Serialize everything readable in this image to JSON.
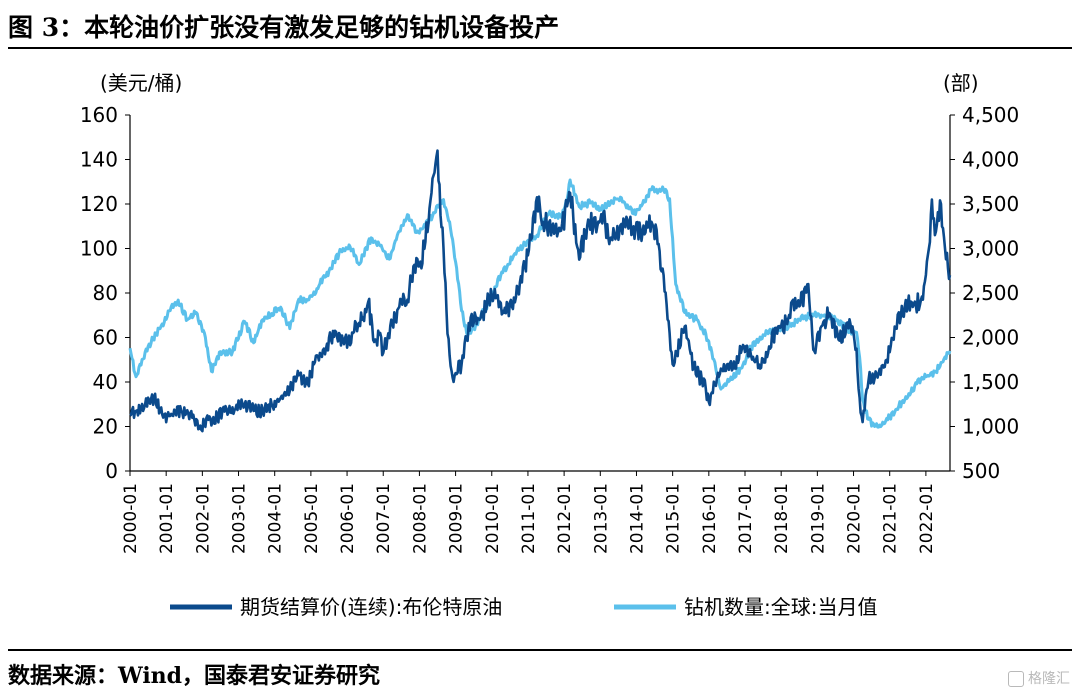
{
  "figure": {
    "title": "图 3：本轮油价扩张没有激发足够的钻机设备投产",
    "source": "数据来源：Wind，国泰君安证券研究",
    "watermark": "格隆汇"
  },
  "chart_data": {
    "type": "line",
    "title": "",
    "y_left": {
      "unit_label": "(美元/桶)",
      "min": 0,
      "max": 160,
      "ticks": [
        0,
        20,
        40,
        60,
        80,
        100,
        120,
        140,
        160
      ],
      "tick_labels": [
        "0",
        "20",
        "40",
        "60",
        "80",
        "100",
        "120",
        "140",
        "160"
      ]
    },
    "y_right": {
      "unit_label": "(部)",
      "min": 500,
      "max": 4500,
      "ticks": [
        500,
        1000,
        1500,
        2000,
        2500,
        3000,
        3500,
        4000,
        4500
      ],
      "tick_labels": [
        "500",
        "1,000",
        "1,500",
        "2,000",
        "2,500",
        "3,000",
        "3,500",
        "4,000",
        "4,500"
      ]
    },
    "x_axis": {
      "min": "2000-01",
      "max": "2022-09",
      "tick_labels": [
        "2000-01",
        "2001-01",
        "2002-01",
        "2003-01",
        "2004-01",
        "2005-01",
        "2006-01",
        "2007-01",
        "2008-01",
        "2009-01",
        "2010-01",
        "2011-01",
        "2012-01",
        "2013-01",
        "2014-01",
        "2015-01",
        "2016-01",
        "2017-01",
        "2018-01",
        "2019-01",
        "2020-01",
        "2021-01",
        "2022-01"
      ]
    },
    "grid": false,
    "legend_position": "bottom",
    "series": [
      {
        "name": "期货结算价(连续):布伦特原油",
        "axis": "left",
        "color": "#0b4a8c",
        "points": [
          [
            "2000-01",
            25
          ],
          [
            "2000-03",
            27
          ],
          [
            "2000-06",
            30
          ],
          [
            "2000-09",
            33
          ],
          [
            "2000-12",
            24
          ],
          [
            "2001-03",
            25
          ],
          [
            "2001-06",
            27
          ],
          [
            "2001-09",
            26
          ],
          [
            "2001-12",
            19
          ],
          [
            "2002-03",
            23
          ],
          [
            "2002-06",
            24
          ],
          [
            "2002-09",
            28
          ],
          [
            "2002-12",
            28
          ],
          [
            "2003-03",
            30
          ],
          [
            "2003-06",
            27
          ],
          [
            "2003-09",
            27
          ],
          [
            "2003-12",
            30
          ],
          [
            "2004-03",
            33
          ],
          [
            "2004-06",
            36
          ],
          [
            "2004-09",
            43
          ],
          [
            "2004-12",
            39
          ],
          [
            "2005-03",
            52
          ],
          [
            "2005-06",
            55
          ],
          [
            "2005-09",
            63
          ],
          [
            "2005-12",
            57
          ],
          [
            "2006-03",
            62
          ],
          [
            "2006-06",
            68
          ],
          [
            "2006-08",
            76
          ],
          [
            "2006-10",
            58
          ],
          [
            "2006-12",
            62
          ],
          [
            "2007-01",
            53
          ],
          [
            "2007-04",
            66
          ],
          [
            "2007-07",
            77
          ],
          [
            "2007-09",
            77
          ],
          [
            "2007-11",
            92
          ],
          [
            "2008-01",
            92
          ],
          [
            "2008-03",
            103
          ],
          [
            "2008-05",
            125
          ],
          [
            "2008-07",
            144
          ],
          [
            "2008-08",
            115
          ],
          [
            "2008-09",
            100
          ],
          [
            "2008-10",
            72
          ],
          [
            "2008-11",
            52
          ],
          [
            "2008-12",
            42
          ],
          [
            "2009-01",
            44
          ],
          [
            "2009-03",
            48
          ],
          [
            "2009-06",
            69
          ],
          [
            "2009-09",
            68
          ],
          [
            "2009-12",
            77
          ],
          [
            "2010-03",
            79
          ],
          [
            "2010-05",
            71
          ],
          [
            "2010-09",
            78
          ],
          [
            "2010-12",
            92
          ],
          [
            "2011-02",
            104
          ],
          [
            "2011-04",
            123
          ],
          [
            "2011-06",
            112
          ],
          [
            "2011-09",
            110
          ],
          [
            "2011-12",
            108
          ],
          [
            "2012-02",
            119
          ],
          [
            "2012-03",
            125
          ],
          [
            "2012-06",
            95
          ],
          [
            "2012-09",
            113
          ],
          [
            "2012-12",
            110
          ],
          [
            "2013-02",
            116
          ],
          [
            "2013-04",
            102
          ],
          [
            "2013-08",
            111
          ],
          [
            "2013-12",
            110
          ],
          [
            "2014-03",
            107
          ],
          [
            "2014-06",
            112
          ],
          [
            "2014-08",
            102
          ],
          [
            "2014-10",
            88
          ],
          [
            "2014-12",
            62
          ],
          [
            "2015-01",
            48
          ],
          [
            "2015-05",
            65
          ],
          [
            "2015-08",
            47
          ],
          [
            "2015-12",
            37
          ],
          [
            "2016-01",
            31
          ],
          [
            "2016-03",
            39
          ],
          [
            "2016-06",
            48
          ],
          [
            "2016-09",
            46
          ],
          [
            "2016-12",
            55
          ],
          [
            "2017-03",
            52
          ],
          [
            "2017-06",
            46
          ],
          [
            "2017-09",
            56
          ],
          [
            "2017-12",
            65
          ],
          [
            "2018-03",
            66
          ],
          [
            "2018-05",
            77
          ],
          [
            "2018-07",
            74
          ],
          [
            "2018-10",
            84
          ],
          [
            "2018-12",
            54
          ],
          [
            "2019-03",
            67
          ],
          [
            "2019-05",
            71
          ],
          [
            "2019-08",
            59
          ],
          [
            "2019-12",
            66
          ],
          [
            "2020-01",
            62
          ],
          [
            "2020-02",
            55
          ],
          [
            "2020-03",
            33
          ],
          [
            "2020-04",
            22
          ],
          [
            "2020-05",
            34
          ],
          [
            "2020-06",
            41
          ],
          [
            "2020-09",
            42
          ],
          [
            "2020-12",
            50
          ],
          [
            "2021-03",
            64
          ],
          [
            "2021-06",
            74
          ],
          [
            "2021-09",
            75
          ],
          [
            "2021-12",
            77
          ],
          [
            "2022-02",
            100
          ],
          [
            "2022-03",
            122
          ],
          [
            "2022-04",
            106
          ],
          [
            "2022-06",
            120
          ],
          [
            "2022-07",
            105
          ],
          [
            "2022-08",
            98
          ],
          [
            "2022-09",
            88
          ]
        ]
      },
      {
        "name": "钻机数量:全球:当月值",
        "axis": "right",
        "color": "#5bc0eb",
        "points": [
          [
            "2000-01",
            1880
          ],
          [
            "2000-03",
            1560
          ],
          [
            "2000-07",
            1900
          ],
          [
            "2000-11",
            2100
          ],
          [
            "2001-02",
            2300
          ],
          [
            "2001-05",
            2420
          ],
          [
            "2001-08",
            2200
          ],
          [
            "2001-11",
            2280
          ],
          [
            "2002-02",
            2000
          ],
          [
            "2002-04",
            1620
          ],
          [
            "2002-07",
            1840
          ],
          [
            "2002-11",
            1840
          ],
          [
            "2003-03",
            2180
          ],
          [
            "2003-06",
            1940
          ],
          [
            "2003-09",
            2200
          ],
          [
            "2003-12",
            2270
          ],
          [
            "2004-03",
            2340
          ],
          [
            "2004-06",
            2100
          ],
          [
            "2004-09",
            2430
          ],
          [
            "2004-12",
            2420
          ],
          [
            "2005-03",
            2550
          ],
          [
            "2005-07",
            2750
          ],
          [
            "2005-11",
            2980
          ],
          [
            "2006-02",
            3020
          ],
          [
            "2006-05",
            2820
          ],
          [
            "2006-09",
            3120
          ],
          [
            "2006-12",
            3030
          ],
          [
            "2007-03",
            2880
          ],
          [
            "2007-06",
            3180
          ],
          [
            "2007-09",
            3380
          ],
          [
            "2007-12",
            3180
          ],
          [
            "2008-03",
            3250
          ],
          [
            "2008-06",
            3400
          ],
          [
            "2008-09",
            3550
          ],
          [
            "2008-11",
            3300
          ],
          [
            "2009-01",
            2850
          ],
          [
            "2009-03",
            2300
          ],
          [
            "2009-05",
            2020
          ],
          [
            "2009-08",
            2150
          ],
          [
            "2009-12",
            2400
          ],
          [
            "2010-04",
            2700
          ],
          [
            "2010-08",
            2900
          ],
          [
            "2010-12",
            3060
          ],
          [
            "2011-04",
            3150
          ],
          [
            "2011-08",
            3400
          ],
          [
            "2011-12",
            3350
          ],
          [
            "2012-02",
            3550
          ],
          [
            "2012-03",
            3770
          ],
          [
            "2012-06",
            3470
          ],
          [
            "2012-10",
            3520
          ],
          [
            "2013-01",
            3430
          ],
          [
            "2013-06",
            3560
          ],
          [
            "2013-09",
            3520
          ],
          [
            "2013-12",
            3390
          ],
          [
            "2014-03",
            3500
          ],
          [
            "2014-06",
            3660
          ],
          [
            "2014-10",
            3660
          ],
          [
            "2014-12",
            3560
          ],
          [
            "2015-02",
            2600
          ],
          [
            "2015-05",
            2280
          ],
          [
            "2015-09",
            2200
          ],
          [
            "2015-12",
            2040
          ],
          [
            "2016-03",
            1720
          ],
          [
            "2016-05",
            1420
          ],
          [
            "2016-08",
            1520
          ],
          [
            "2016-12",
            1660
          ],
          [
            "2017-03",
            1890
          ],
          [
            "2017-07",
            2030
          ],
          [
            "2017-12",
            2080
          ],
          [
            "2018-04",
            2140
          ],
          [
            "2018-07",
            2200
          ],
          [
            "2018-12",
            2260
          ],
          [
            "2019-03",
            2240
          ],
          [
            "2019-07",
            2210
          ],
          [
            "2019-11",
            2090
          ],
          [
            "2020-02",
            2060
          ],
          [
            "2020-03",
            1780
          ],
          [
            "2020-04",
            1300
          ],
          [
            "2020-06",
            1080
          ],
          [
            "2020-08",
            1000
          ],
          [
            "2020-11",
            1030
          ],
          [
            "2021-03",
            1190
          ],
          [
            "2021-06",
            1300
          ],
          [
            "2021-10",
            1480
          ],
          [
            "2022-01",
            1560
          ],
          [
            "2022-04",
            1610
          ],
          [
            "2022-07",
            1760
          ],
          [
            "2022-09",
            1850
          ]
        ]
      }
    ]
  }
}
